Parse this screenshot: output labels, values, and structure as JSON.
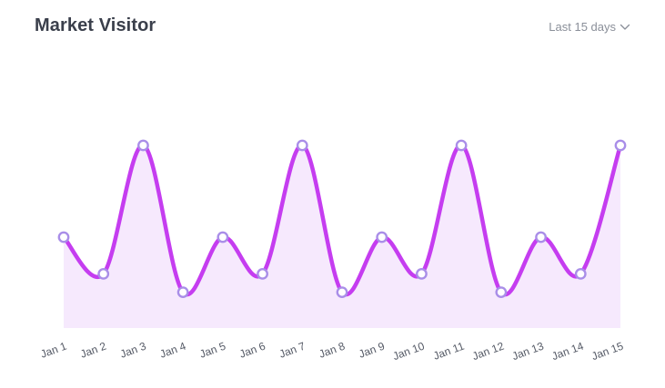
{
  "header": {
    "title": "Market Visitor",
    "range_label": "Last 15 days"
  },
  "icons": {
    "range": "chevron-down-icon"
  },
  "colors": {
    "line": "#c53df0",
    "area": "#f6e9fd",
    "point_fill": "#ffffff",
    "point_stroke": "#a98ee8"
  },
  "chart_data": {
    "type": "area",
    "title": "Market Visitor",
    "categories": [
      "Jan 1",
      "Jan 2",
      "Jan 3",
      "Jan 4",
      "Jan 5",
      "Jan 6",
      "Jan 7",
      "Jan 8",
      "Jan 9",
      "Jan 10",
      "Jan 11",
      "Jan 12",
      "Jan 13",
      "Jan 14",
      "Jan 15"
    ],
    "series": [
      {
        "values": [
          50,
          30,
          100,
          20,
          50,
          30,
          100,
          20,
          50,
          30,
          100,
          20,
          50,
          30,
          100
        ]
      }
    ],
    "ylim": [
      0,
      100
    ],
    "grid": false,
    "smooth": true,
    "markers": true
  }
}
